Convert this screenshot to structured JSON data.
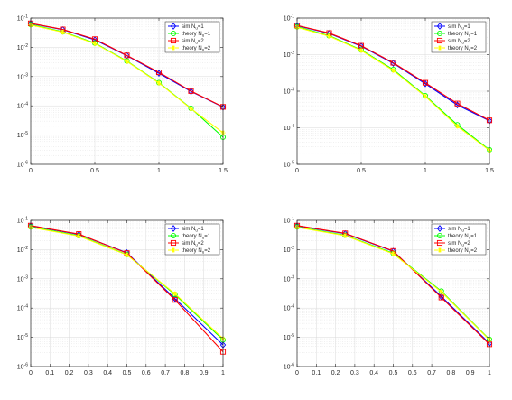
{
  "figure": {
    "colors": {
      "axes": "#262626",
      "grid": "#d9d9d9",
      "background": "#ffffff"
    }
  },
  "chart_data": [
    {
      "type": "line",
      "yscale": "log",
      "ylim": [
        1e-06,
        0.1
      ],
      "xlim": [
        0,
        1.5
      ],
      "xticks": [
        "0",
        "0.5",
        "1",
        "1.5"
      ],
      "yticks": [
        "10-6",
        "10-5",
        "10-4",
        "10-3",
        "10-2",
        "10-1"
      ],
      "grid": true,
      "legend_placement": "top-right",
      "x": [
        0,
        0.25,
        0.5,
        0.75,
        1.0,
        1.25,
        1.5
      ],
      "series": [
        {
          "name": "sim Nu=1",
          "color": "#0000ff",
          "marker": "diamond",
          "values": [
            0.065,
            0.04,
            0.018,
            0.0052,
            0.0013,
            0.00031,
            9e-05
          ]
        },
        {
          "name": "theory Nu=1",
          "color": "#00ff00",
          "marker": "circle",
          "values": [
            0.06,
            0.034,
            0.014,
            0.0034,
            0.00062,
            8.2e-05,
            8.5e-06
          ]
        },
        {
          "name": "sim Nu=2",
          "color": "#ff0000",
          "marker": "square",
          "values": [
            0.066,
            0.041,
            0.019,
            0.0053,
            0.0014,
            0.00032,
            9.2e-05
          ]
        },
        {
          "name": "theory Nu=2",
          "color": "#ffff00",
          "marker": "star",
          "values": [
            0.058,
            0.033,
            0.0135,
            0.0033,
            0.0006,
            8e-05,
            1.2e-05
          ]
        }
      ]
    },
    {
      "type": "line",
      "yscale": "log",
      "ylim": [
        1e-05,
        0.1
      ],
      "xlim": [
        0,
        1.5
      ],
      "xticks": [
        "0",
        "0.5",
        "1",
        "1.5"
      ],
      "yticks": [
        "10-5",
        "10-4",
        "10-3",
        "10-2",
        "10-1"
      ],
      "grid": true,
      "legend_placement": "top-right",
      "x": [
        0,
        0.25,
        0.5,
        0.75,
        1.0,
        1.25,
        1.5
      ],
      "series": [
        {
          "name": "sim Nu=1",
          "color": "#0000ff",
          "marker": "diamond",
          "values": [
            0.062,
            0.038,
            0.017,
            0.0058,
            0.0016,
            0.00042,
            0.000155
          ]
        },
        {
          "name": "theory Nu=1",
          "color": "#00ff00",
          "marker": "circle",
          "values": [
            0.058,
            0.033,
            0.0135,
            0.0039,
            0.00075,
            0.00012,
            2.5e-05
          ]
        },
        {
          "name": "sim Nu=2",
          "color": "#ff0000",
          "marker": "square",
          "values": [
            0.063,
            0.039,
            0.0175,
            0.006,
            0.0017,
            0.00046,
            0.00016
          ]
        },
        {
          "name": "theory Nu=2",
          "color": "#ffff00",
          "marker": "star",
          "values": [
            0.056,
            0.032,
            0.013,
            0.0037,
            0.00072,
            0.00011,
            2.4e-05
          ]
        }
      ]
    },
    {
      "type": "line",
      "yscale": "log",
      "ylim": [
        1e-06,
        0.1
      ],
      "xlim": [
        0,
        1
      ],
      "xticks": [
        "0",
        "0.1",
        "0.2",
        "0.3",
        "0.4",
        "0.5",
        "0.6",
        "0.7",
        "0.8",
        "0.9",
        "1"
      ],
      "yticks": [
        "10-6",
        "10-5",
        "10-4",
        "10-3",
        "10-2",
        "10-1"
      ],
      "grid": true,
      "legend_placement": "top-right",
      "x": [
        0,
        0.25,
        0.5,
        0.75,
        1.0
      ],
      "series": [
        {
          "name": "sim Nu=1",
          "color": "#0000ff",
          "marker": "diamond",
          "values": [
            0.065,
            0.033,
            0.0078,
            0.00021,
            5.5e-06
          ]
        },
        {
          "name": "theory Nu=1",
          "color": "#00ff00",
          "marker": "circle",
          "values": [
            0.06,
            0.03,
            0.0068,
            0.00029,
            8.2e-06
          ]
        },
        {
          "name": "sim Nu=2",
          "color": "#ff0000",
          "marker": "square",
          "values": [
            0.066,
            0.034,
            0.0076,
            0.00019,
            3.2e-06
          ]
        },
        {
          "name": "theory Nu=2",
          "color": "#ffff00",
          "marker": "star",
          "values": [
            0.058,
            0.029,
            0.0066,
            0.00031,
            9e-06
          ]
        }
      ]
    },
    {
      "type": "line",
      "yscale": "log",
      "ylim": [
        1e-06,
        0.1
      ],
      "xlim": [
        0,
        1
      ],
      "xticks": [
        "0",
        "0.1",
        "0.2",
        "0.3",
        "0.4",
        "0.5",
        "0.6",
        "0.7",
        "0.8",
        "0.9",
        "1"
      ],
      "yticks": [
        "10-6",
        "10-5",
        "10-4",
        "10-3",
        "10-2",
        "10-1"
      ],
      "grid": true,
      "legend_placement": "top-right",
      "x": [
        0,
        0.25,
        0.5,
        0.75,
        1.0
      ],
      "series": [
        {
          "name": "sim Nu=1",
          "color": "#0000ff",
          "marker": "diamond",
          "values": [
            0.065,
            0.035,
            0.0088,
            0.00025,
            6.2e-06
          ]
        },
        {
          "name": "theory Nu=1",
          "color": "#00ff00",
          "marker": "circle",
          "values": [
            0.06,
            0.031,
            0.0075,
            0.00038,
            8.5e-06
          ]
        },
        {
          "name": "sim Nu=2",
          "color": "#ff0000",
          "marker": "square",
          "values": [
            0.066,
            0.036,
            0.009,
            0.00023,
            5.8e-06
          ]
        },
        {
          "name": "theory Nu=2",
          "color": "#ffff00",
          "marker": "star",
          "values": [
            0.058,
            0.03,
            0.0072,
            0.00036,
            8.2e-06
          ]
        }
      ]
    }
  ]
}
